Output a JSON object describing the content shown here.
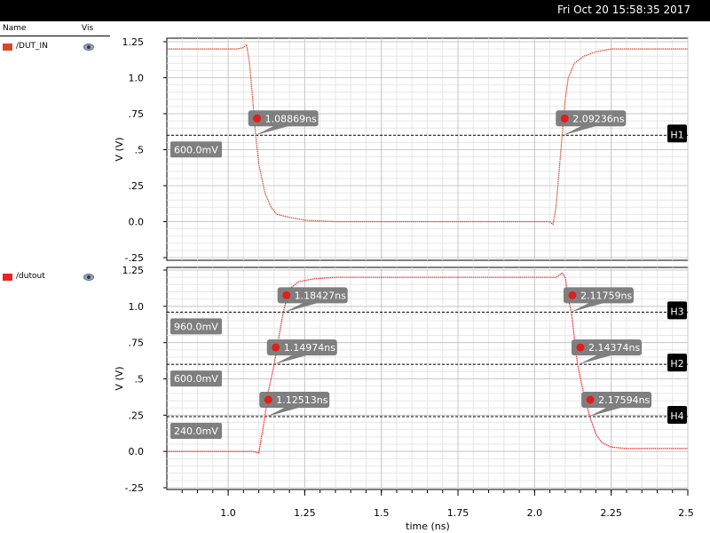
{
  "status_bar": {
    "datetime": "Fri Oct 20 15:58:35 2017"
  },
  "legend_header": {
    "name": "Name",
    "vis": "Vis"
  },
  "signals": [
    {
      "name": "/DUT_IN",
      "color": "#d34a2a",
      "icon": "eye-icon"
    },
    {
      "name": "/dutout",
      "color": "#ee2222",
      "icon": "eye-icon"
    }
  ],
  "chart_data": {
    "type": "line",
    "xlabel": "time (ns)",
    "xlim": [
      0.8,
      2.5
    ],
    "x_ticks": [
      "1.0",
      "1.25",
      "1.5",
      "1.75",
      "2.0",
      "2.25",
      "2.5"
    ],
    "x_tick_values": [
      1.0,
      1.25,
      1.5,
      1.75,
      2.0,
      2.25,
      2.5
    ],
    "panels": [
      {
        "ylabel": "V (V)",
        "ylim": [
          -0.25,
          1.25
        ],
        "y_ticks": [
          "1.25",
          "1.0",
          ".75",
          ".5",
          ".25",
          "0.0",
          "-.25"
        ],
        "y_tick_values": [
          1.25,
          1.0,
          0.75,
          0.5,
          0.25,
          0.0,
          -0.25
        ],
        "series": {
          "name": "/DUT_IN",
          "color": "#d34a2a",
          "x": [
            0.8,
            1.03,
            1.05,
            1.06,
            1.07,
            1.08,
            1.09,
            1.1,
            1.12,
            1.14,
            1.16,
            1.2,
            1.25,
            1.35,
            2.05,
            2.06,
            2.07,
            2.08,
            2.09,
            2.1,
            2.11,
            2.13,
            2.16,
            2.2,
            2.25,
            2.5
          ],
          "y": [
            1.2,
            1.2,
            1.21,
            1.23,
            1.1,
            0.85,
            0.6,
            0.4,
            0.2,
            0.1,
            0.05,
            0.03,
            0.01,
            0.0,
            0.0,
            -0.02,
            0.1,
            0.35,
            0.6,
            0.85,
            1.0,
            1.1,
            1.15,
            1.18,
            1.2,
            1.2
          ]
        },
        "h_markers": [
          {
            "id": "H1",
            "value": 0.6,
            "label": "600.0mV"
          }
        ],
        "crossing_labels": [
          {
            "x": 1.08869,
            "y": 0.6,
            "label": "1.08869ns"
          },
          {
            "x": 2.09236,
            "y": 0.6,
            "label": "2.09236ns"
          }
        ]
      },
      {
        "ylabel": "V (V)",
        "ylim": [
          -0.25,
          1.25
        ],
        "y_ticks": [
          "1.25",
          "1.0",
          ".75",
          ".5",
          ".25",
          "0.0",
          "-.25"
        ],
        "y_tick_values": [
          1.25,
          1.0,
          0.75,
          0.5,
          0.25,
          0.0,
          -0.25
        ],
        "series": {
          "name": "/dutout",
          "color": "#ee2222",
          "x": [
            0.8,
            1.05,
            1.08,
            1.1,
            1.12,
            1.13,
            1.15,
            1.18,
            1.2,
            1.23,
            1.28,
            1.35,
            1.5,
            2.07,
            2.09,
            2.1,
            2.11,
            2.12,
            2.14,
            2.16,
            2.18,
            2.2,
            2.22,
            2.25,
            2.3,
            2.5
          ],
          "y": [
            0.0,
            0.0,
            0.0,
            -0.01,
            0.24,
            0.4,
            0.6,
            0.96,
            1.12,
            1.17,
            1.19,
            1.2,
            1.2,
            1.2,
            1.23,
            1.2,
            1.05,
            0.96,
            0.6,
            0.4,
            0.24,
            0.12,
            0.06,
            0.03,
            0.02,
            0.02
          ]
        },
        "h_markers": [
          {
            "id": "H3",
            "value": 0.96,
            "label": "960.0mV"
          },
          {
            "id": "H2",
            "value": 0.6,
            "label": "600.0mV"
          },
          {
            "id": "H4",
            "value": 0.24,
            "label": "240.0mV"
          }
        ],
        "crossing_labels": [
          {
            "x": 1.18427,
            "y": 0.96,
            "label": "1.18427ns"
          },
          {
            "x": 2.11759,
            "y": 0.96,
            "label": "2.11759ns"
          },
          {
            "x": 1.14974,
            "y": 0.6,
            "label": "1.14974ns"
          },
          {
            "x": 2.14374,
            "y": 0.6,
            "label": "2.14374ns"
          },
          {
            "x": 1.12513,
            "y": 0.24,
            "label": "1.12513ns"
          },
          {
            "x": 2.17594,
            "y": 0.24,
            "label": "2.17594ns"
          }
        ]
      }
    ]
  }
}
